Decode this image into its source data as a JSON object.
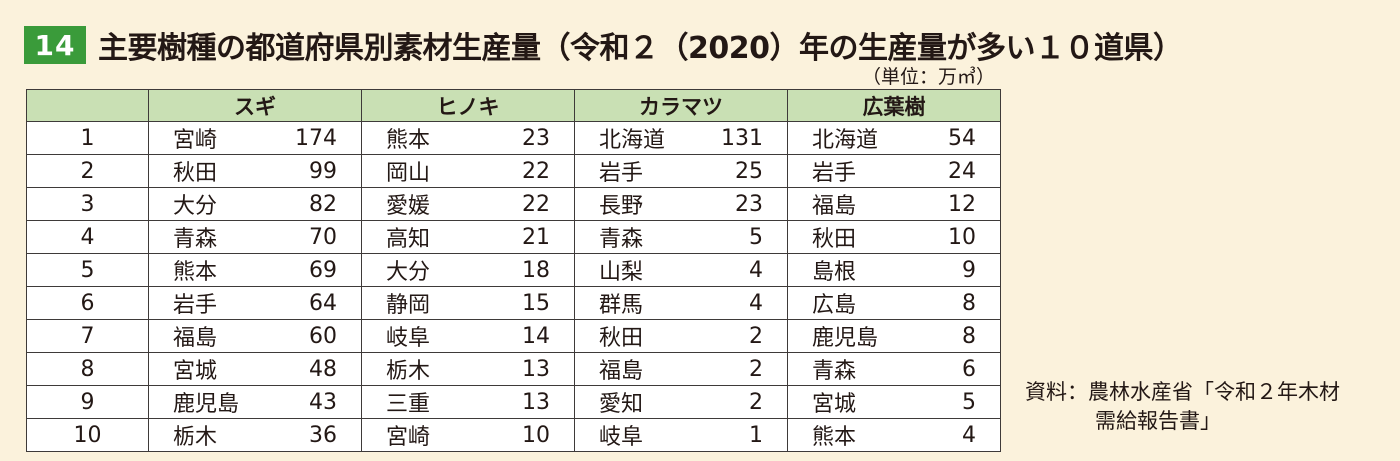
{
  "header": {
    "badge": "14",
    "title": "主要樹種の都道府県別素材生産量（令和２（2020）年の生産量が多い１０道県）"
  },
  "unit": "（単位：万㎥）",
  "table": {
    "columns": [
      "",
      "スギ",
      "ヒノキ",
      "カラマツ",
      "広葉樹"
    ],
    "rows": [
      {
        "rank": "1",
        "cells": [
          [
            "宮崎",
            "174"
          ],
          [
            "熊本",
            "23"
          ],
          [
            "北海道",
            "131"
          ],
          [
            "北海道",
            "54"
          ]
        ]
      },
      {
        "rank": "2",
        "cells": [
          [
            "秋田",
            "99"
          ],
          [
            "岡山",
            "22"
          ],
          [
            "岩手",
            "25"
          ],
          [
            "岩手",
            "24"
          ]
        ]
      },
      {
        "rank": "3",
        "cells": [
          [
            "大分",
            "82"
          ],
          [
            "愛媛",
            "22"
          ],
          [
            "長野",
            "23"
          ],
          [
            "福島",
            "12"
          ]
        ]
      },
      {
        "rank": "4",
        "cells": [
          [
            "青森",
            "70"
          ],
          [
            "高知",
            "21"
          ],
          [
            "青森",
            "5"
          ],
          [
            "秋田",
            "10"
          ]
        ]
      },
      {
        "rank": "5",
        "cells": [
          [
            "熊本",
            "69"
          ],
          [
            "大分",
            "18"
          ],
          [
            "山梨",
            "4"
          ],
          [
            "島根",
            "9"
          ]
        ]
      },
      {
        "rank": "6",
        "cells": [
          [
            "岩手",
            "64"
          ],
          [
            "静岡",
            "15"
          ],
          [
            "群馬",
            "4"
          ],
          [
            "広島",
            "8"
          ]
        ]
      },
      {
        "rank": "7",
        "cells": [
          [
            "福島",
            "60"
          ],
          [
            "岐阜",
            "14"
          ],
          [
            "秋田",
            "2"
          ],
          [
            "鹿児島",
            "8"
          ]
        ]
      },
      {
        "rank": "8",
        "cells": [
          [
            "宮城",
            "48"
          ],
          [
            "栃木",
            "13"
          ],
          [
            "福島",
            "2"
          ],
          [
            "青森",
            "6"
          ]
        ]
      },
      {
        "rank": "9",
        "cells": [
          [
            "鹿児島",
            "43"
          ],
          [
            "三重",
            "13"
          ],
          [
            "愛知",
            "2"
          ],
          [
            "宮城",
            "5"
          ]
        ]
      },
      {
        "rank": "10",
        "cells": [
          [
            "栃木",
            "36"
          ],
          [
            "宮崎",
            "10"
          ],
          [
            "岐阜",
            "1"
          ],
          [
            "熊本",
            "4"
          ]
        ]
      }
    ]
  },
  "source": {
    "line1": "資料：農林水産省「令和２年木材",
    "line2": "需給報告書」"
  }
}
